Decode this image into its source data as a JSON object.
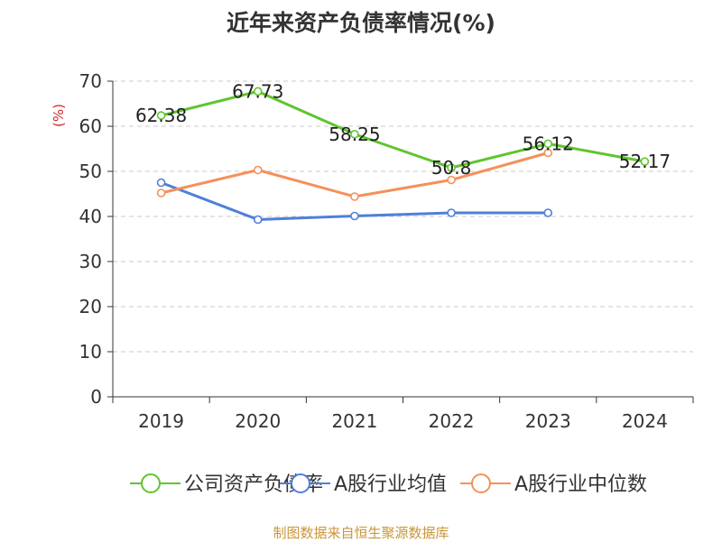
{
  "chart_data": {
    "type": "line",
    "title": "近年来资产负债率情况(%)",
    "ylabel": "(%)",
    "categories": [
      "2019",
      "2020",
      "2021",
      "2022",
      "2023",
      "2024"
    ],
    "ylim": [
      0,
      70
    ],
    "yticks": [
      "0",
      "10",
      "20",
      "30",
      "40",
      "50",
      "60",
      "70"
    ],
    "grid": true,
    "legend_position": "bottom",
    "series": [
      {
        "name": "公司资产负债率",
        "color": "#5fc52e",
        "values": [
          62.38,
          67.73,
          58.25,
          50.8,
          56.12,
          52.17
        ],
        "labels": [
          "62.38",
          "67.73",
          "58.25",
          "50.8",
          "56.12",
          "52.17"
        ]
      },
      {
        "name": "A股行业均值",
        "color": "#4f7fd9",
        "values": [
          47.5,
          39.3,
          40.1,
          40.8,
          40.8,
          null
        ]
      },
      {
        "name": "A股行业中位数",
        "color": "#f5905a",
        "values": [
          45.2,
          50.3,
          44.4,
          48.1,
          54.1,
          null
        ]
      }
    ]
  },
  "footer": {
    "source": "制图数据来自恒生聚源数据库"
  }
}
